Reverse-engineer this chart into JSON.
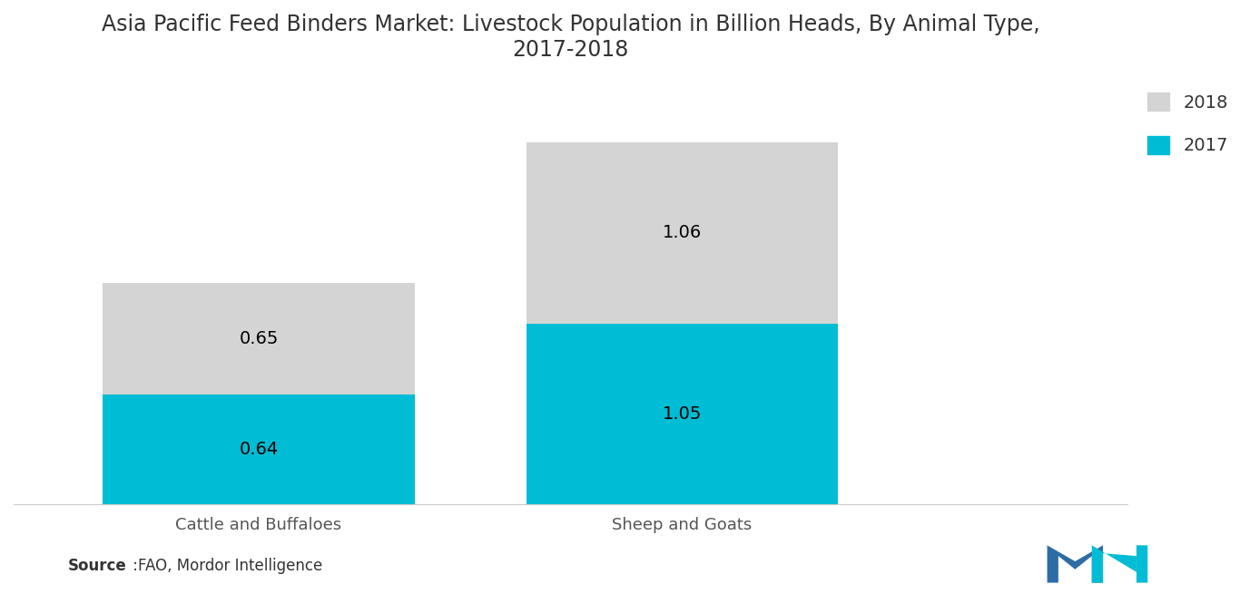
{
  "title_line1": "Asia Pacific Feed Binders Market: Livestock Population in Billion Heads, By Animal Type,",
  "title_line2": "2017-2018",
  "categories": [
    "Cattle and Buffaloes",
    "Sheep and Goats"
  ],
  "values_2017": [
    0.64,
    1.05
  ],
  "values_2018": [
    0.65,
    1.06
  ],
  "color_2017": "#00BCD4",
  "color_2018": "#D4D4D4",
  "source_bold": "Source",
  "source_rest": " :FAO, Mordor Intelligence",
  "title_fontsize": 17,
  "label_fontsize": 14,
  "tick_fontsize": 13,
  "legend_fontsize": 14,
  "background_color": "#ffffff",
  "bar_width": 0.28,
  "x_positions": [
    0.22,
    0.6
  ],
  "xlim": [
    0.0,
    1.0
  ],
  "ylim": [
    0,
    2.45
  ]
}
